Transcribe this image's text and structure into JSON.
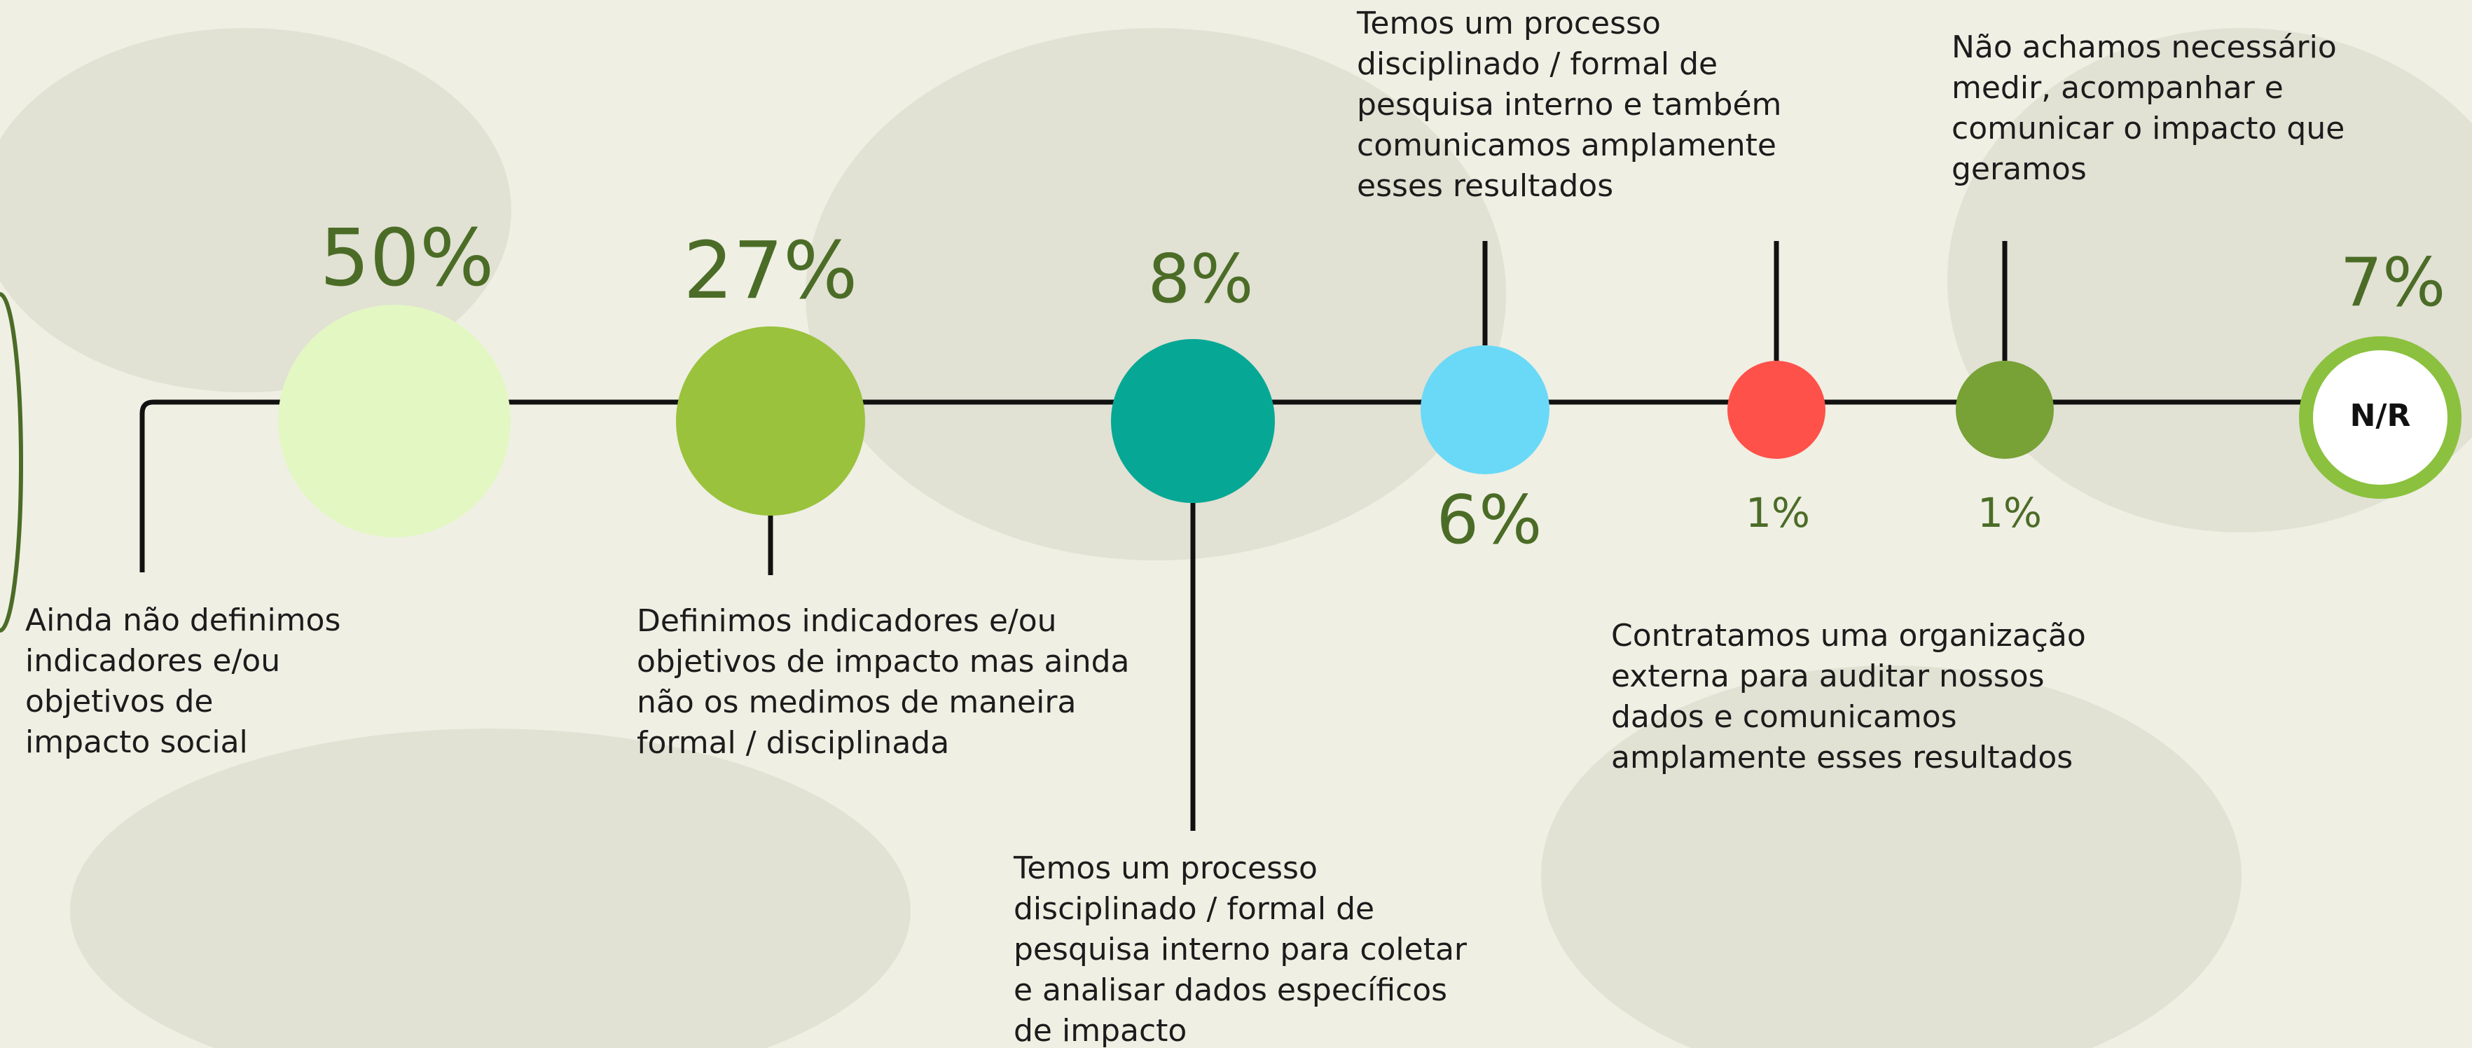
{
  "nodes": [
    {
      "value": "50%",
      "label": [
        "Ainda não definimos",
        "indicadores e/ou",
        "objetivos de",
        "impacto social"
      ]
    },
    {
      "value": "27%",
      "label": [
        "Definimos indicadores e/ou",
        "objetivos de impacto mas ainda",
        "não os medimos de maneira",
        "formal / disciplinada"
      ]
    },
    {
      "value": "8%",
      "label": [
        "Temos um processo",
        "disciplinado / formal de",
        "pesquisa interno para coletar",
        "e analisar dados específicos",
        "de impacto"
      ]
    },
    {
      "value": "6%",
      "label": [
        "Temos um processo",
        "disciplinado / formal de",
        "pesquisa interno e também",
        "comunicamos amplamente",
        "esses resultados"
      ]
    },
    {
      "value": "1%",
      "label": [
        "Contratamos uma organização",
        "externa para auditar nossos",
        "dados e comunicamos",
        "amplamente esses resultados"
      ]
    },
    {
      "value": "1%",
      "label": [
        "Não achamos necessário",
        "medir, acompanhar e",
        "comunicar o impacto que",
        "geramos"
      ]
    },
    {
      "value": "7%",
      "badge": "N/R"
    }
  ]
}
